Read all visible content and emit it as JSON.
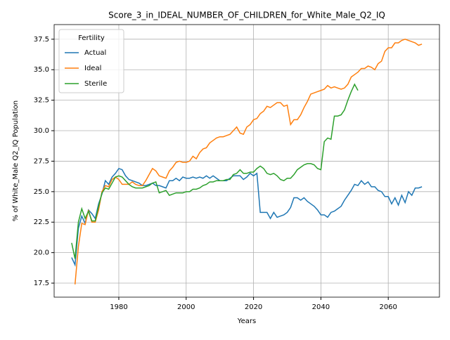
{
  "chart_data": {
    "type": "line",
    "title": "Score_3_in_IDEAL_NUMBER_OF_CHILDREN_for_White_Male_Q2_IQ",
    "xlabel": "Years",
    "ylabel": "% of White_Male Q2_IQ Population",
    "legend_title": "Fertility",
    "legend": "upper left",
    "grid": true,
    "xlim": [
      1960.8,
      2075.2
    ],
    "xticks": [
      1980,
      2000,
      2020,
      2040,
      2060
    ],
    "ylim": [
      16.35,
      38.7
    ],
    "yticks": [
      17.5,
      {
        "value": 20,
        "label": "20.0"
      },
      22.5,
      {
        "value": 25,
        "label": "25.0"
      },
      27.5,
      {
        "value": 30,
        "label": "30.0"
      },
      32.5,
      {
        "value": 35,
        "label": "35.0"
      },
      37.5
    ],
    "x": [
      1966,
      1967,
      1968,
      1969,
      1970,
      1971,
      1972,
      1973,
      1974,
      1975,
      1976,
      1977,
      1978,
      1979,
      1980,
      1981,
      1982,
      1983,
      1984,
      1985,
      1986,
      1987,
      1988,
      1989,
      1990,
      1991,
      1992,
      1993,
      1994,
      1995,
      1996,
      1997,
      1998,
      1999,
      2000,
      2001,
      2002,
      2003,
      2004,
      2005,
      2006,
      2007,
      2008,
      2009,
      2010,
      2011,
      2012,
      2013,
      2014,
      2015,
      2016,
      2017,
      2018,
      2019,
      2020,
      2021,
      2022,
      2023,
      2024,
      2025,
      2026,
      2027,
      2028,
      2029,
      2030,
      2031,
      2032,
      2033,
      2034,
      2035,
      2036,
      2037,
      2038,
      2039,
      2040,
      2041,
      2042,
      2043,
      2044,
      2045,
      2046,
      2047,
      2048,
      2049,
      2050,
      2051,
      2052,
      2053,
      2054,
      2055,
      2056,
      2057,
      2058,
      2059,
      2060,
      2061,
      2062,
      2063,
      2064,
      2065,
      2066,
      2067,
      2068,
      2069,
      2070
    ],
    "series": [
      {
        "name": "Actual",
        "color": "#1f77b4",
        "values": [
          19.6,
          19.0,
          22.0,
          23.0,
          22.4,
          23.5,
          23.2,
          22.8,
          24.0,
          24.8,
          25.9,
          25.6,
          26.2,
          26.5,
          26.9,
          26.8,
          26.3,
          26.0,
          25.9,
          25.8,
          25.7,
          25.5,
          25.5,
          25.6,
          25.7,
          25.5,
          25.5,
          25.4,
          25.3,
          25.9,
          25.9,
          26.1,
          25.9,
          26.2,
          26.1,
          26.1,
          26.2,
          26.1,
          26.2,
          26.1,
          26.3,
          26.1,
          26.3,
          26.1,
          25.9,
          25.9,
          25.9,
          26.1,
          26.3,
          26.3,
          26.3,
          26.0,
          26.2,
          26.5,
          26.3,
          26.5,
          23.3,
          23.3,
          23.3,
          22.8,
          23.3,
          22.9,
          23.0,
          23.1,
          23.3,
          23.7,
          24.5,
          24.5,
          24.3,
          24.5,
          24.2,
          24.0,
          23.8,
          23.5,
          23.1,
          23.1,
          22.9,
          23.3,
          23.4,
          23.6,
          23.8,
          24.3,
          24.7,
          25.1,
          25.6,
          25.5,
          25.9,
          25.6,
          25.8,
          25.4,
          25.4,
          25.1,
          25.0,
          24.6,
          24.6,
          24.0,
          24.5,
          23.9,
          24.7,
          24.1,
          25.0,
          24.7,
          25.3,
          25.3,
          25.4
        ]
      },
      {
        "name": "Ideal",
        "color": "#ff7f0e",
        "values": [
          null,
          17.4,
          20.5,
          22.4,
          22.3,
          23.5,
          22.5,
          22.5,
          23.5,
          25.0,
          25.5,
          25.4,
          26.0,
          26.2,
          26.0,
          25.6,
          25.6,
          25.6,
          25.8,
          25.6,
          25.5,
          25.5,
          25.9,
          26.4,
          26.9,
          26.7,
          26.3,
          26.2,
          26.1,
          26.7,
          27.0,
          27.4,
          27.5,
          27.4,
          27.4,
          27.5,
          27.9,
          27.7,
          28.2,
          28.5,
          28.6,
          29.0,
          29.2,
          29.4,
          29.5,
          29.5,
          29.6,
          29.7,
          30.0,
          30.3,
          29.8,
          29.7,
          30.3,
          30.5,
          30.9,
          31.0,
          31.4,
          31.6,
          32.0,
          31.9,
          32.1,
          32.3,
          32.3,
          32.0,
          32.1,
          30.5,
          30.9,
          30.9,
          31.3,
          31.9,
          32.4,
          33.0,
          33.1,
          33.2,
          33.3,
          33.4,
          33.7,
          33.5,
          33.6,
          33.5,
          33.4,
          33.5,
          33.8,
          34.4,
          34.6,
          34.8,
          35.1,
          35.1,
          35.3,
          35.2,
          35.0,
          35.5,
          35.7,
          36.5,
          36.8,
          36.8,
          37.2,
          37.2,
          37.4,
          37.5,
          37.4,
          37.3,
          37.2,
          37.0,
          37.1
        ]
      },
      {
        "name": "Sterile",
        "color": "#2ca02c",
        "values": [
          20.8,
          19.5,
          22.5,
          23.6,
          22.8,
          23.4,
          22.6,
          22.6,
          23.8,
          24.9,
          25.3,
          25.2,
          25.7,
          26.2,
          26.3,
          26.2,
          25.9,
          25.6,
          25.4,
          25.3,
          25.3,
          25.3,
          25.4,
          25.5,
          25.7,
          25.8,
          24.9,
          25.0,
          25.1,
          24.7,
          24.8,
          24.9,
          24.9,
          24.9,
          25.0,
          25.0,
          25.2,
          25.2,
          25.3,
          25.5,
          25.6,
          25.8,
          25.8,
          25.9,
          25.9,
          25.9,
          26.0,
          26.0,
          26.4,
          26.5,
          26.8,
          26.5,
          26.5,
          26.6,
          26.6,
          26.9,
          27.1,
          26.9,
          26.5,
          26.4,
          26.5,
          26.3,
          26.0,
          25.9,
          26.1,
          26.1,
          26.4,
          26.8,
          27.0,
          27.2,
          27.3,
          27.3,
          27.2,
          26.9,
          26.8,
          29.1,
          29.4,
          29.3,
          31.2,
          31.2,
          31.3,
          31.7,
          32.5,
          33.2,
          33.8,
          33.3,
          null,
          null,
          null,
          null,
          null,
          null,
          null,
          null,
          null,
          null,
          null,
          null,
          null,
          null,
          null,
          null,
          null,
          null,
          null
        ]
      }
    ]
  }
}
